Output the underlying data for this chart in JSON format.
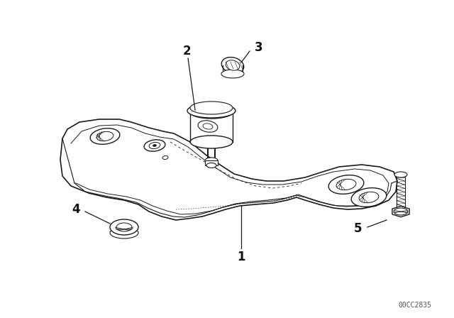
{
  "background_color": "#ffffff",
  "figure_width": 6.4,
  "figure_height": 4.48,
  "dpi": 100,
  "watermark": "00CC2835",
  "line_color": "#1a1a1a",
  "line_width": 1.0,
  "annotation_color": "#111111"
}
